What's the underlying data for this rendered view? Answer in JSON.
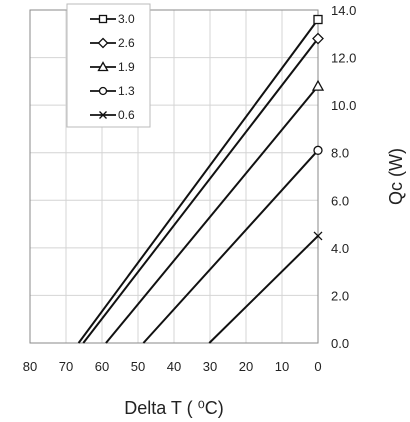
{
  "chart_data": {
    "type": "line",
    "xlabel": "Delta T ( ⁰C)",
    "ylabel": "Qc (W)",
    "xlim": [
      80,
      0
    ],
    "ylim": [
      0,
      14
    ],
    "x_ticks": [
      "80",
      "70",
      "60",
      "50",
      "40",
      "30",
      "20",
      "10",
      "0"
    ],
    "y_ticks": [
      "0.0",
      "2.0",
      "4.0",
      "6.0",
      "8.0",
      "10.0",
      "12.0",
      "14.0"
    ],
    "grid": true,
    "legend_position": "top-left",
    "line_color": "#111111",
    "series": [
      {
        "name": "3.0",
        "marker": "square",
        "x": [
          66.5,
          0
        ],
        "y": [
          0,
          13.6
        ]
      },
      {
        "name": "2.6",
        "marker": "diamond",
        "x": [
          65.2,
          0
        ],
        "y": [
          0,
          12.8
        ]
      },
      {
        "name": "1.9",
        "marker": "triangle",
        "x": [
          58.9,
          0
        ],
        "y": [
          0,
          10.8
        ]
      },
      {
        "name": "1.3",
        "marker": "circle",
        "x": [
          48.5,
          0
        ],
        "y": [
          0,
          8.1
        ]
      },
      {
        "name": "0.6",
        "marker": "x",
        "x": [
          30.2,
          0
        ],
        "y": [
          0,
          4.5
        ]
      }
    ]
  }
}
